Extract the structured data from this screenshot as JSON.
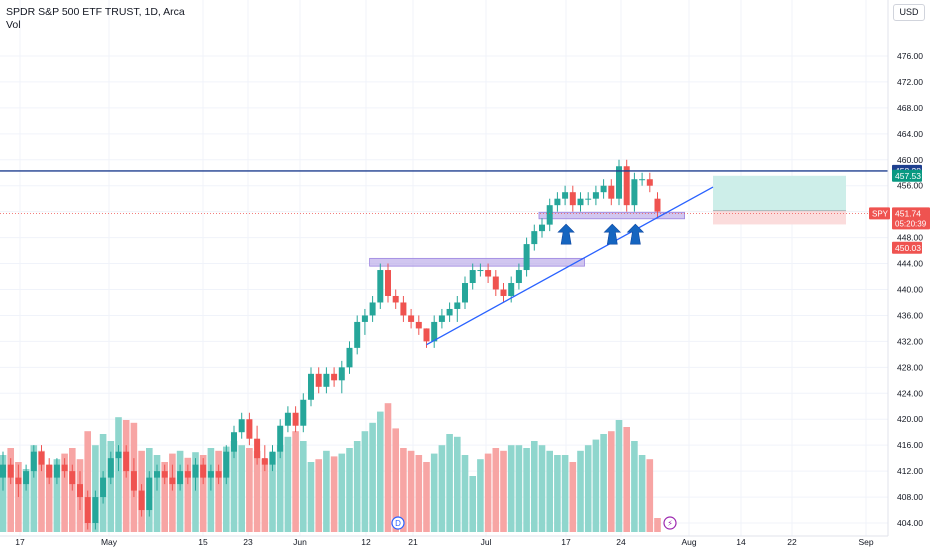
{
  "header": {
    "title": "SPDR S&P 500 ETF TRUST, 1D, Arca",
    "volume_label": "Vol"
  },
  "currency_button": "USD",
  "price_axis": {
    "ticks": [
      "476.00",
      "472.00",
      "468.00",
      "464.00",
      "460.00",
      "456.00",
      "452.00",
      "448.00",
      "444.00",
      "440.00",
      "436.00",
      "432.00",
      "428.00",
      "424.00",
      "420.00",
      "416.00",
      "412.00",
      "408.00",
      "404.00"
    ]
  },
  "time_axis": {
    "ticks": [
      "17",
      "May",
      "15",
      "23",
      "Jun",
      "12",
      "21",
      "Jul",
      "17",
      "24",
      "Aug",
      "14",
      "22",
      "Sep"
    ]
  },
  "price_labels": {
    "resistance": "458.28",
    "take_profit": "457.53",
    "entry": "452.14",
    "symbol": "SPY",
    "last_price": "451.74",
    "countdown": "05:20:39",
    "stop": "450.03"
  },
  "event_markers": {
    "dividend": "D",
    "earnings": "⚡"
  },
  "colors": {
    "up": "#26a69a",
    "down": "#ef5350",
    "volume_up": "#8fd6cd",
    "volume_down": "#f7a5a4",
    "trend_line": "#2962ff",
    "resistance_line": "#1e3f8f",
    "zone_fill": "#b9a7e8",
    "take_profit_fill": "#cdeee9",
    "stop_fill": "#fbdcdc",
    "arrow": "#1565c0"
  },
  "chart_data": {
    "type": "candlestick",
    "symbol": "SPY",
    "interval": "1D",
    "ylim": [
      402,
      478
    ],
    "candles": [
      [
        411,
        415,
        409,
        413
      ],
      [
        413,
        414,
        410,
        411
      ],
      [
        411,
        413,
        408,
        410
      ],
      [
        410,
        413,
        409,
        412
      ],
      [
        412,
        416,
        411,
        415
      ],
      [
        415,
        416,
        412,
        413
      ],
      [
        413,
        414,
        410,
        411
      ],
      [
        411,
        414,
        410,
        413
      ],
      [
        413,
        414,
        411,
        412
      ],
      [
        412,
        413,
        409,
        410
      ],
      [
        410,
        412,
        406,
        408
      ],
      [
        408,
        409,
        403,
        404
      ],
      [
        404,
        409,
        403,
        408
      ],
      [
        408,
        412,
        407,
        411
      ],
      [
        411,
        415,
        410,
        414
      ],
      [
        414,
        416,
        412,
        415
      ],
      [
        415,
        416,
        411,
        412
      ],
      [
        412,
        414,
        408,
        409
      ],
      [
        409,
        410,
        405,
        406
      ],
      [
        406,
        412,
        405,
        411
      ],
      [
        411,
        413,
        409,
        412
      ],
      [
        412,
        413,
        410,
        411
      ],
      [
        411,
        413,
        409,
        410
      ],
      [
        410,
        413,
        409,
        412
      ],
      [
        412,
        413,
        410,
        411
      ],
      [
        411,
        414,
        409,
        413
      ],
      [
        413,
        414,
        410,
        411
      ],
      [
        411,
        413,
        409,
        412
      ],
      [
        412,
        413,
        410,
        411
      ],
      [
        411,
        416,
        410,
        415
      ],
      [
        415,
        419,
        414,
        418
      ],
      [
        418,
        421,
        417,
        420
      ],
      [
        420,
        421,
        416,
        417
      ],
      [
        417,
        419,
        413,
        414
      ],
      [
        414,
        416,
        412,
        413
      ],
      [
        413,
        416,
        412,
        415
      ],
      [
        415,
        420,
        414,
        419
      ],
      [
        419,
        422,
        418,
        421
      ],
      [
        421,
        422,
        418,
        419
      ],
      [
        419,
        424,
        418,
        423
      ],
      [
        423,
        428,
        422,
        427
      ],
      [
        427,
        428,
        424,
        425
      ],
      [
        425,
        428,
        424,
        427
      ],
      [
        427,
        428,
        425,
        426
      ],
      [
        426,
        429,
        424,
        428
      ],
      [
        428,
        432,
        427,
        431
      ],
      [
        431,
        436,
        430,
        435
      ],
      [
        435,
        437,
        433,
        436
      ],
      [
        436,
        439,
        435,
        438
      ],
      [
        438,
        444,
        437,
        443
      ],
      [
        443,
        444,
        438,
        439
      ],
      [
        439,
        440,
        437,
        438
      ],
      [
        438,
        439,
        435,
        436
      ],
      [
        436,
        437,
        434,
        435
      ],
      [
        435,
        436,
        433,
        434
      ],
      [
        434,
        434,
        431,
        432
      ],
      [
        432,
        436,
        431,
        435
      ],
      [
        435,
        437,
        434,
        436
      ],
      [
        436,
        438,
        435,
        437
      ],
      [
        437,
        439,
        435,
        438
      ],
      [
        438,
        442,
        437,
        441
      ],
      [
        441,
        444,
        440,
        443
      ],
      [
        443,
        444,
        442,
        443
      ],
      [
        443,
        444,
        441,
        442
      ],
      [
        442,
        443,
        439,
        440
      ],
      [
        440,
        441,
        438,
        439
      ],
      [
        439,
        442,
        438,
        441
      ],
      [
        441,
        444,
        440,
        443
      ],
      [
        443,
        448,
        442,
        447
      ],
      [
        447,
        450,
        446,
        449
      ],
      [
        449,
        451,
        448,
        450
      ],
      [
        450,
        454,
        449,
        453
      ],
      [
        453,
        455,
        452,
        454
      ],
      [
        454,
        456,
        453,
        455
      ],
      [
        455,
        456,
        452,
        453
      ],
      [
        453,
        455,
        452,
        454
      ],
      [
        454,
        455,
        453,
        454
      ],
      [
        454,
        456,
        453,
        455
      ],
      [
        455,
        457,
        454,
        456
      ],
      [
        456,
        457,
        453,
        454
      ],
      [
        454,
        460,
        453,
        459
      ],
      [
        459,
        460,
        452,
        453
      ],
      [
        453,
        458,
        452,
        457
      ],
      [
        457,
        458,
        456,
        457
      ],
      [
        457,
        458,
        455,
        456
      ],
      [
        454,
        455,
        451,
        452
      ]
    ],
    "volume_relative": [
      0.55,
      0.6,
      0.5,
      0.45,
      0.62,
      0.58,
      0.48,
      0.52,
      0.56,
      0.6,
      0.52,
      0.72,
      0.62,
      0.7,
      0.65,
      0.82,
      0.8,
      0.78,
      0.58,
      0.6,
      0.55,
      0.5,
      0.56,
      0.58,
      0.53,
      0.57,
      0.55,
      0.6,
      0.58,
      0.61,
      0.65,
      0.62,
      0.6,
      0.58,
      0.52,
      0.57,
      0.62,
      0.68,
      0.72,
      0.65,
      0.5,
      0.52,
      0.58,
      0.54,
      0.56,
      0.6,
      0.65,
      0.72,
      0.78,
      0.86,
      0.92,
      0.74,
      0.6,
      0.58,
      0.55,
      0.5,
      0.56,
      0.62,
      0.7,
      0.68,
      0.55,
      0.4,
      0.52,
      0.56,
      0.6,
      0.58,
      0.62,
      0.62,
      0.6,
      0.65,
      0.62,
      0.58,
      0.55,
      0.55,
      0.5,
      0.58,
      0.62,
      0.66,
      0.7,
      0.72,
      0.8,
      0.75,
      0.65,
      0.55,
      0.52,
      0.1
    ],
    "support_zones": [
      {
        "from_index": 48,
        "to_index": 75,
        "low": 443.6,
        "high": 444.8
      },
      {
        "from_index": 70,
        "to_index": 88,
        "low": 450.9,
        "high": 451.9
      }
    ],
    "trend_line": {
      "from_index": 55,
      "from_price": 431.5,
      "to_index": 93,
      "to_price": 455.8
    },
    "resistance_price": 458.28,
    "last_price_line": 451.74,
    "position": {
      "entry": 452.14,
      "target": 457.53,
      "stop": 450.03
    },
    "arrows_at_index": [
      73,
      79,
      82
    ]
  }
}
